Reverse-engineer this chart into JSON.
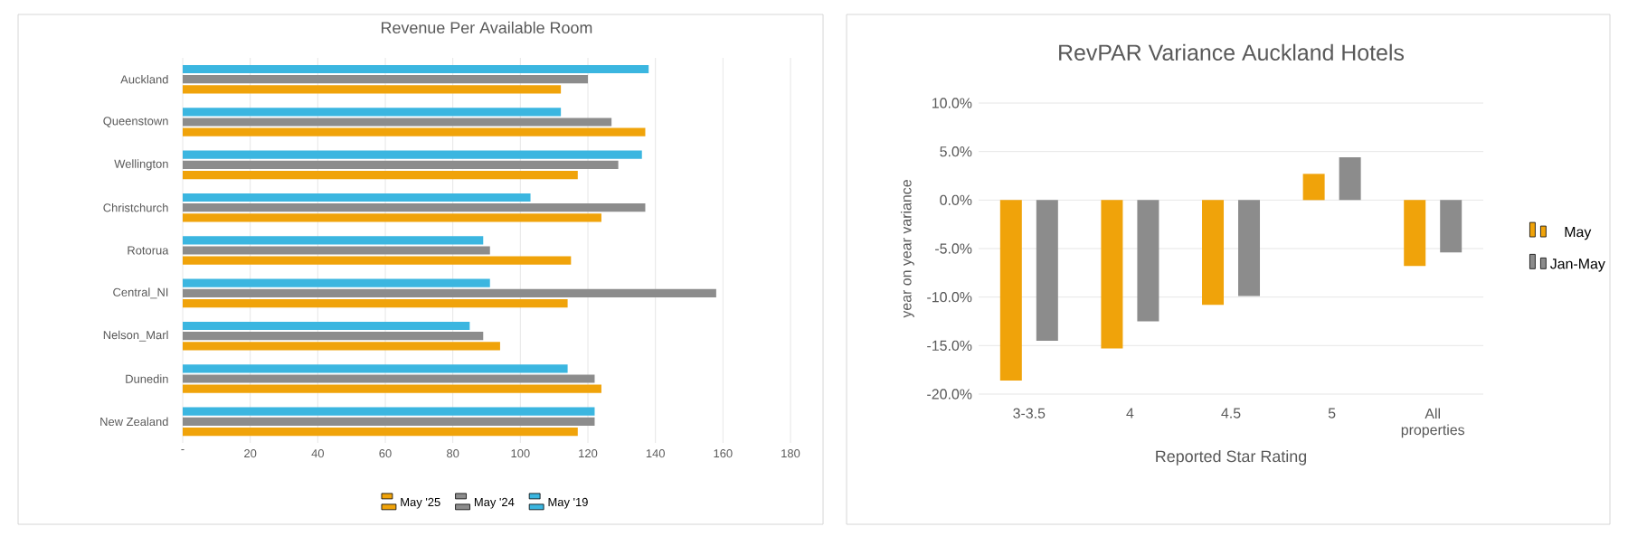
{
  "chart_data": [
    {
      "type": "bar",
      "orientation": "horizontal",
      "title": "Revenue Per Available Room",
      "categories": [
        "Auckland",
        "Queenstown",
        "Wellington",
        "Christchurch",
        "Rotorua",
        "Central_NI",
        "Nelson_Marl",
        "Dunedin",
        "New Zealand"
      ],
      "series": [
        {
          "name": "May '25",
          "color": "#f0a30a",
          "values": [
            112,
            137,
            117,
            124,
            115,
            114,
            94,
            124,
            117
          ]
        },
        {
          "name": "May '24",
          "color": "#8c8c8c",
          "values": [
            120,
            127,
            129,
            137,
            91,
            158,
            89,
            122,
            122
          ]
        },
        {
          "name": "May '19",
          "color": "#3bb6e0",
          "values": [
            138,
            112,
            136,
            103,
            89,
            91,
            85,
            114,
            122
          ]
        }
      ],
      "xlim": [
        0,
        180
      ],
      "xticks": [
        {
          "value": 0,
          "label": "-"
        },
        20,
        40,
        60,
        80,
        100,
        120,
        140,
        160,
        180
      ],
      "grid": "x",
      "legend": "bottom"
    },
    {
      "type": "bar",
      "title": "RevPAR Variance Auckland Hotels",
      "xlabel": "Reported Star Rating",
      "ylabel": "year on year variance",
      "categories": [
        "3-3.5",
        "4",
        "4.5",
        "5",
        "All properties"
      ],
      "series": [
        {
          "name": "May",
          "color": "#f0a30a",
          "values": [
            -18.6,
            -15.3,
            -10.8,
            2.7,
            -6.8
          ]
        },
        {
          "name": "Jan-May",
          "color": "#8c8c8c",
          "values": [
            -14.5,
            -12.5,
            -9.9,
            4.4,
            -5.4
          ]
        }
      ],
      "ylim": [
        -20,
        10
      ],
      "yticks": [
        {
          "value": -20,
          "label": "-20.0%"
        },
        {
          "value": -15,
          "label": "-15.0%"
        },
        {
          "value": -10,
          "label": "-10.0%"
        },
        {
          "value": -5,
          "label": "-5.0%"
        },
        {
          "value": 0,
          "label": "0.0%"
        },
        {
          "value": 5,
          "label": "5.0%"
        },
        {
          "value": 10,
          "label": "10.0%"
        }
      ],
      "grid": "y",
      "legend": "right"
    }
  ]
}
